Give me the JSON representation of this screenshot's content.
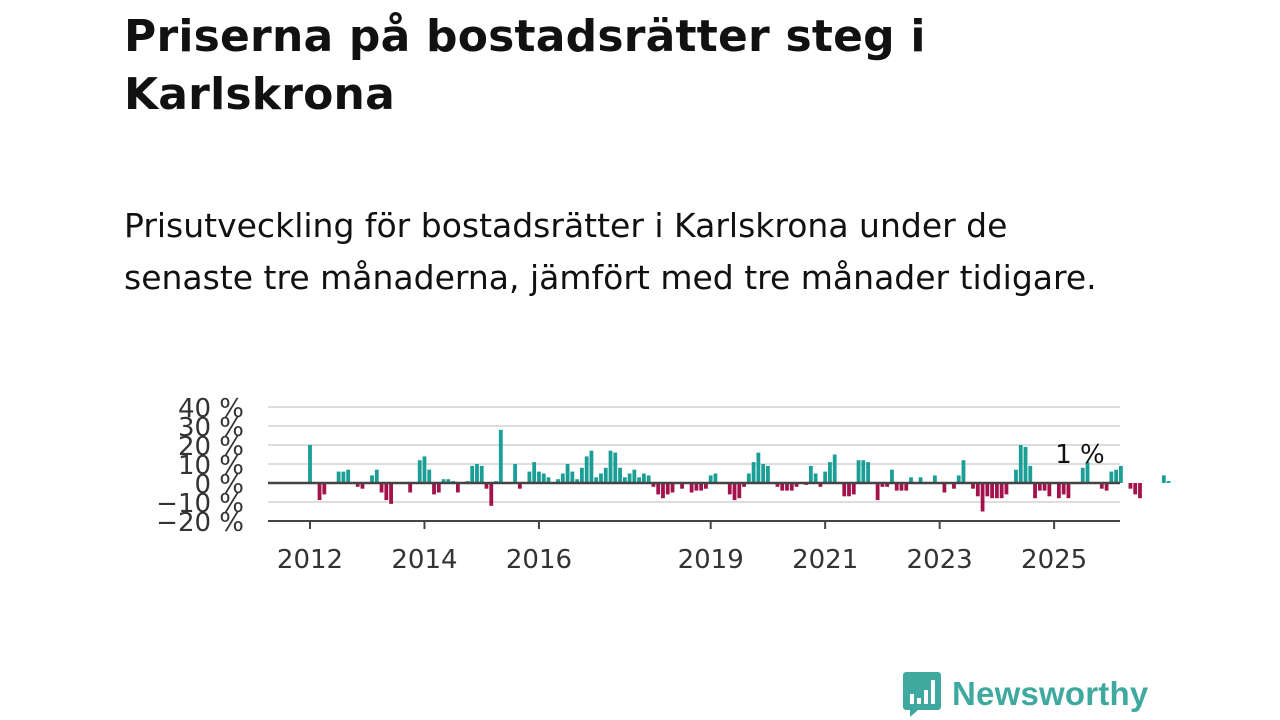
{
  "header": {
    "title": "Priserna på bostadsrätter steg i Karlskrona",
    "subtitle": "Prisutveckling för bostadsrätter i Karlskrona under de senaste tre månaderna, jämfört med tre månader tidigare."
  },
  "brand": {
    "name": "Newsworthy",
    "logo_icon": "bar-chart-speech-bubble-icon",
    "color": "#3fa9a0"
  },
  "chart_data": {
    "type": "bar",
    "x_start": "2012-01",
    "x_end": "2025-05",
    "x_tick_labels": [
      "2012",
      "2014",
      "2016",
      "2019",
      "2021",
      "2023",
      "2025"
    ],
    "y_tick_labels": [
      "40 %",
      "30 %",
      "20 %",
      "10 %",
      "0 %",
      "−10 %",
      "−20 %"
    ],
    "ylim": [
      -20,
      40
    ],
    "y_ticks": [
      40,
      30,
      20,
      10,
      0,
      -10,
      -20
    ],
    "grid": true,
    "last_value_label": "1 %",
    "positive_color": "#1a9e96",
    "negative_color": "#a3124a",
    "values": [
      20,
      0,
      -9,
      -6,
      0,
      0,
      6,
      6,
      7,
      0,
      -2,
      -3,
      0,
      4,
      7,
      -5,
      -9,
      -11,
      0,
      0,
      0,
      -5,
      0,
      12,
      14,
      7,
      -6,
      -5,
      2,
      2,
      1,
      -5,
      0,
      1,
      9,
      10,
      9,
      -3,
      -12,
      1,
      28,
      0,
      0,
      10,
      -3,
      0,
      6,
      11,
      6,
      5,
      3,
      0,
      2,
      5,
      10,
      6,
      2,
      8,
      14,
      17,
      3,
      5,
      8,
      17,
      16,
      8,
      3,
      5,
      7,
      3,
      5,
      4,
      -2,
      -6,
      -8,
      -6,
      -5,
      0,
      -3,
      0,
      -5,
      -4,
      -4,
      -3,
      4,
      5,
      0,
      0,
      -6,
      -9,
      -8,
      -2,
      5,
      11,
      16,
      10,
      9,
      0,
      -2,
      -4,
      -4,
      -4,
      -2,
      0,
      -1,
      9,
      5,
      -2,
      6,
      11,
      15,
      0,
      -7,
      -7,
      -6,
      12,
      12,
      11,
      0,
      -9,
      -2,
      -2,
      7,
      -4,
      -4,
      -4,
      3,
      0,
      3,
      0,
      0,
      4,
      0,
      -5,
      0,
      -3,
      4,
      12,
      0,
      -3,
      -7,
      -15,
      -7,
      -8,
      -8,
      -8,
      -6,
      0,
      7,
      20,
      19,
      9,
      -8,
      -4,
      -4,
      -7,
      0,
      -8,
      -6,
      -8,
      0,
      0,
      8,
      11,
      0,
      0,
      -3,
      -4,
      6,
      7,
      9,
      0,
      -3,
      -6,
      -8,
      0,
      0,
      0,
      0,
      4,
      1
    ]
  }
}
